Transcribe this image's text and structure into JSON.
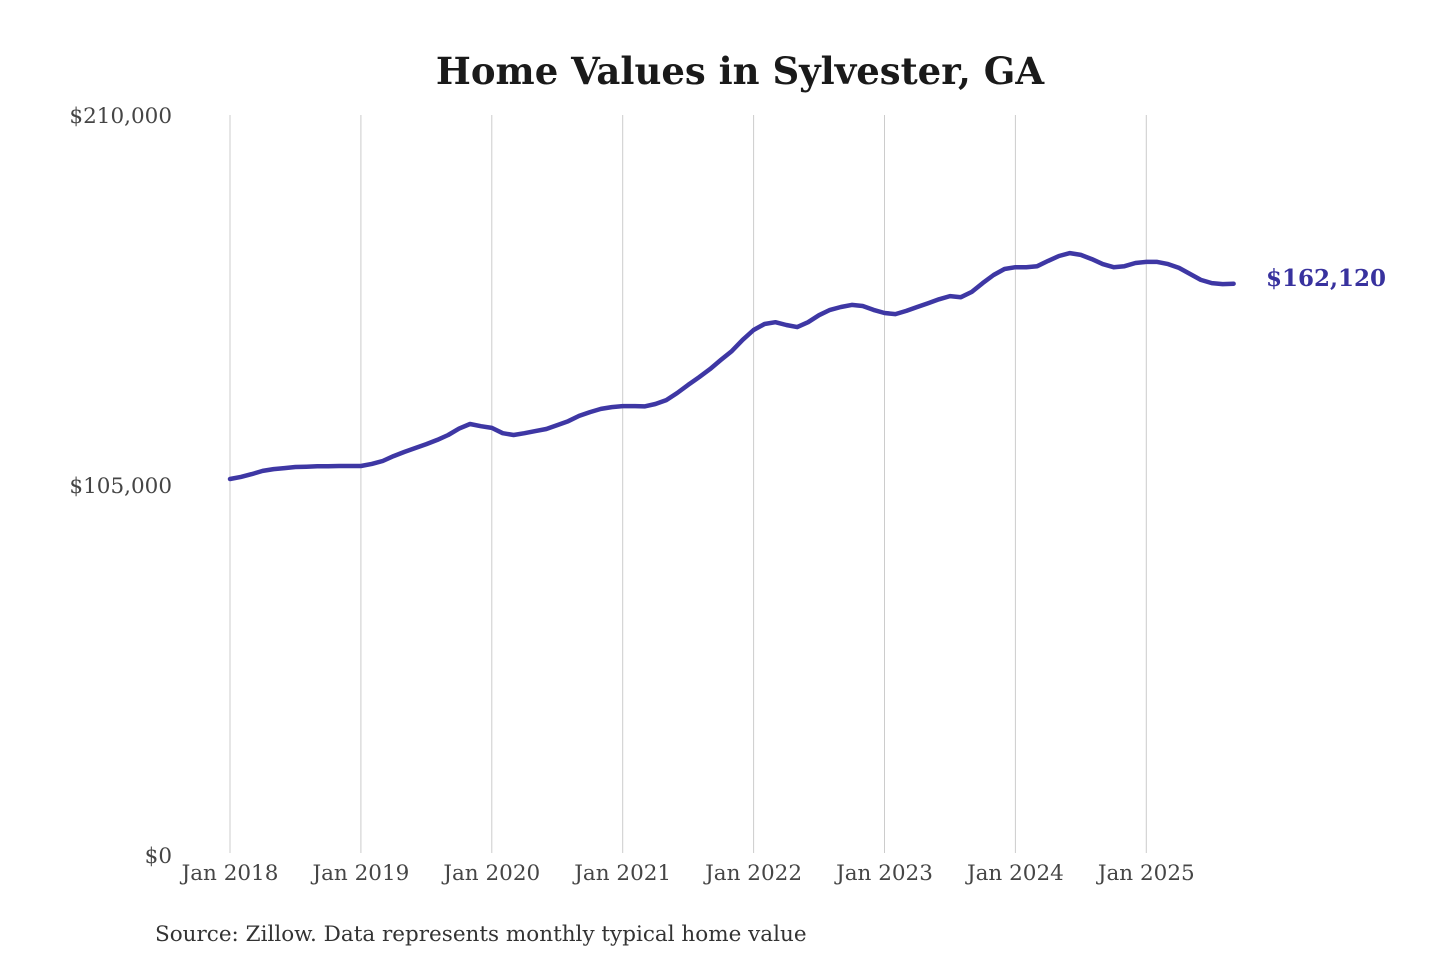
{
  "page": {
    "background": "#ffffff"
  },
  "header": {
    "title": "Home Values in Sylvester, GA"
  },
  "footer": {
    "source": "Source: Zillow. Data represents monthly typical home value"
  },
  "chart_data": {
    "type": "line",
    "title": "Home Values in Sylvester, GA",
    "x_start": "2018-01",
    "x_end": "2025-09",
    "x_frequency": "monthly",
    "x_tick_labels": [
      "Jan 2018",
      "Jan 2019",
      "Jan 2020",
      "Jan 2021",
      "Jan 2022",
      "Jan 2023",
      "Jan 2024",
      "Jan 2025"
    ],
    "y_ticks": [
      0,
      105000,
      210000
    ],
    "y_tick_labels": [
      "$0",
      "$105,000",
      "$210,000"
    ],
    "ylim": [
      0,
      210000
    ],
    "grid": "vertical-only",
    "gridline_color": "#cccccc",
    "axis_text_color": "#454545",
    "title_color": "#1a1a1a",
    "background_color": "#ffffff",
    "end_label": "$162,120",
    "end_value": 162120,
    "end_label_color": "#38329e",
    "series": [
      {
        "name": "Monthly typical home value",
        "color": "#3e37a4",
        "stroke_width": 4.5,
        "values": [
          106700,
          107300,
          108100,
          109000,
          109500,
          109800,
          110100,
          110200,
          110300,
          110300,
          110400,
          110400,
          110400,
          111000,
          111800,
          113200,
          114400,
          115500,
          116600,
          117800,
          119200,
          121000,
          122300,
          121700,
          121200,
          119700,
          119200,
          119700,
          120300,
          120900,
          122000,
          123100,
          124600,
          125700,
          126600,
          127100,
          127400,
          127400,
          127300,
          128000,
          129100,
          131100,
          133400,
          135600,
          137900,
          140500,
          143000,
          146200,
          149000,
          150700,
          151200,
          150400,
          149800,
          151200,
          153200,
          154700,
          155500,
          156100,
          155800,
          154700,
          153800,
          153500,
          154400,
          155500,
          156600,
          157700,
          158600,
          158300,
          159800,
          162300,
          164600,
          166300,
          166800,
          166800,
          167100,
          168600,
          170000,
          170800,
          170300,
          169100,
          167700,
          166800,
          167100,
          168000,
          168300,
          168300,
          167700,
          166600,
          164900,
          163200,
          162300,
          162000,
          162120
        ]
      }
    ]
  }
}
